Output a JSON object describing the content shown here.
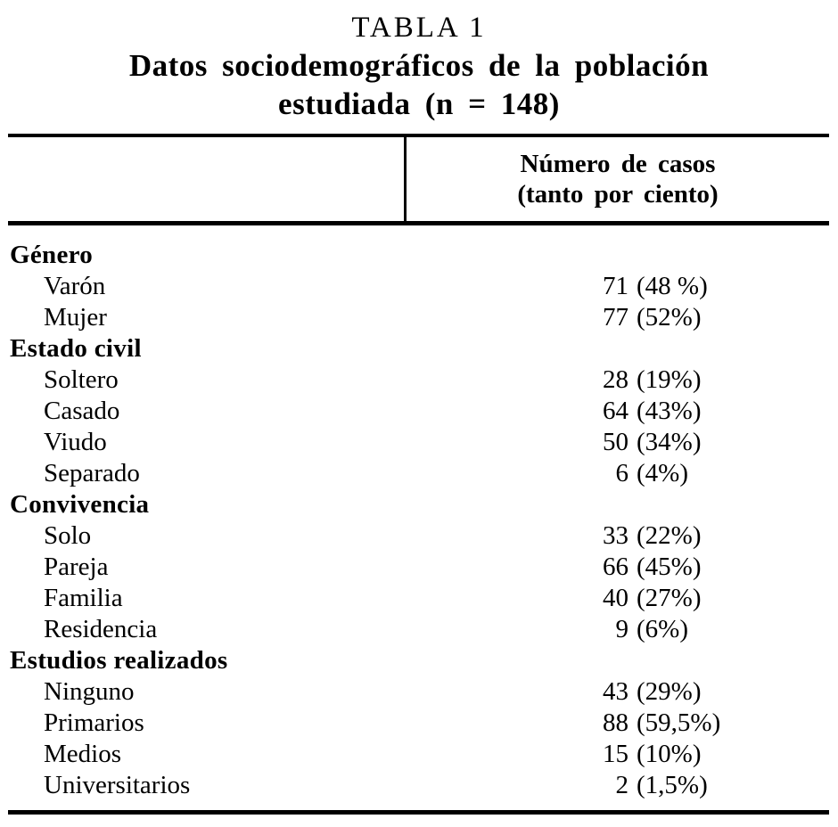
{
  "page": {
    "eyebrow": "TABLA 1",
    "title_line1": "Datos sociodemográficos de la población",
    "title_line2": "estudiada (n = 148)"
  },
  "table": {
    "header": {
      "col2_line1": "Número de casos",
      "col2_line2": "(tanto por ciento)"
    },
    "sections": [
      {
        "heading": "Género",
        "rows": [
          {
            "label": "Varón",
            "count": "71",
            "percent": "(48 %)"
          },
          {
            "label": "Mujer",
            "count": "77",
            "percent": "(52%)"
          }
        ]
      },
      {
        "heading": "Estado civil",
        "rows": [
          {
            "label": "Soltero",
            "count": "28",
            "percent": "(19%)"
          },
          {
            "label": "Casado",
            "count": "64",
            "percent": "(43%)"
          },
          {
            "label": "Viudo",
            "count": "50",
            "percent": "(34%)"
          },
          {
            "label": "Separado",
            "count": "6",
            "percent": "(4%)"
          }
        ]
      },
      {
        "heading": "Convivencia",
        "rows": [
          {
            "label": "Solo",
            "count": "33",
            "percent": "(22%)"
          },
          {
            "label": "Pareja",
            "count": "66",
            "percent": "(45%)"
          },
          {
            "label": "Familia",
            "count": "40",
            "percent": "(27%)"
          },
          {
            "label": "Residencia",
            "count": "9",
            "percent": "(6%)"
          }
        ]
      },
      {
        "heading": "Estudios realizados",
        "rows": [
          {
            "label": "Ninguno",
            "count": "43",
            "percent": "(29%)"
          },
          {
            "label": "Primarios",
            "count": "88",
            "percent": "(59,5%)"
          },
          {
            "label": "Medios",
            "count": "15",
            "percent": "(10%)"
          },
          {
            "label": "Universitarios",
            "count": "2",
            "percent": "(1,5%)"
          }
        ]
      }
    ]
  },
  "colors": {
    "text": "#000000",
    "background": "#ffffff"
  }
}
